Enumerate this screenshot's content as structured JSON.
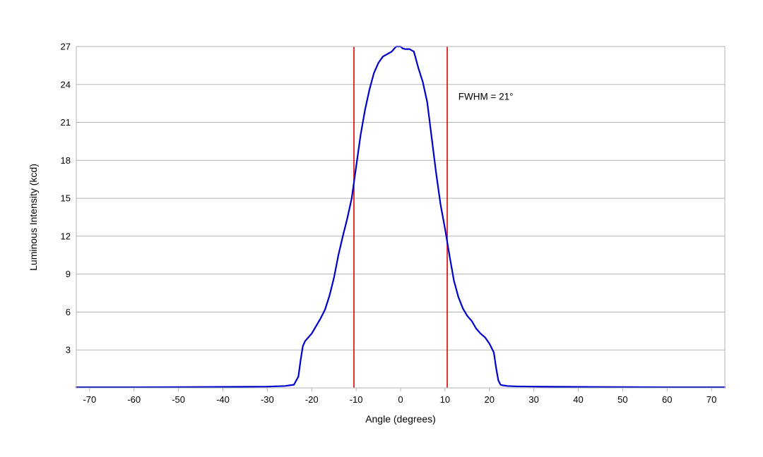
{
  "chart_data": {
    "type": "line",
    "title": "",
    "xlabel": "Angle (degrees)",
    "ylabel": "Luminous Intensity (kcd)",
    "xlim": [
      -73,
      73
    ],
    "ylim": [
      0,
      27
    ],
    "xticks": [
      -70,
      -60,
      -50,
      -40,
      -30,
      -20,
      -10,
      0,
      10,
      20,
      30,
      40,
      50,
      60,
      70
    ],
    "yticks": [
      3,
      6,
      9,
      12,
      15,
      18,
      21,
      24,
      27
    ],
    "grid": {
      "horizontal": true,
      "vertical": false
    },
    "legend": "none",
    "annotation": {
      "text": "FWHM = 21°",
      "x": 13,
      "y": 22.8
    },
    "markers": [
      {
        "x": -10.5,
        "color": "#dd0000"
      },
      {
        "x": 10.5,
        "color": "#dd0000"
      }
    ],
    "series": [
      {
        "color": "#0000cc",
        "x": [
          -73,
          -60,
          -45,
          -30,
          -26,
          -24,
          -23,
          -22.5,
          -22,
          -21.5,
          -21,
          -20,
          -19,
          -18,
          -17,
          -16,
          -15,
          -14,
          -13,
          -12,
          -11,
          -10,
          -9,
          -8,
          -7,
          -6,
          -5,
          -4,
          -3,
          -2,
          -1,
          0,
          0.5,
          1,
          2,
          3,
          4,
          5,
          6,
          7,
          8,
          9,
          10,
          11,
          12,
          13,
          14,
          15,
          16,
          17,
          18,
          19,
          20,
          21,
          21.5,
          22,
          22.5,
          23,
          23.5,
          24,
          26,
          30,
          45,
          60,
          73
        ],
        "y": [
          0.05,
          0.05,
          0.07,
          0.1,
          0.15,
          0.25,
          0.9,
          2.2,
          3.3,
          3.7,
          3.9,
          4.3,
          4.9,
          5.5,
          6.2,
          7.3,
          8.7,
          10.5,
          12.0,
          13.4,
          15.0,
          17.5,
          20.0,
          22.0,
          23.6,
          24.9,
          25.7,
          26.2,
          26.4,
          26.6,
          27.0,
          27.0,
          26.85,
          26.8,
          26.8,
          26.6,
          25.3,
          24.2,
          22.6,
          19.8,
          17.0,
          14.5,
          12.6,
          10.5,
          8.5,
          7.2,
          6.3,
          5.7,
          5.3,
          4.7,
          4.3,
          4.0,
          3.5,
          2.8,
          1.6,
          0.6,
          0.25,
          0.2,
          0.18,
          0.15,
          0.12,
          0.1,
          0.07,
          0.05,
          0.05
        ]
      }
    ]
  }
}
